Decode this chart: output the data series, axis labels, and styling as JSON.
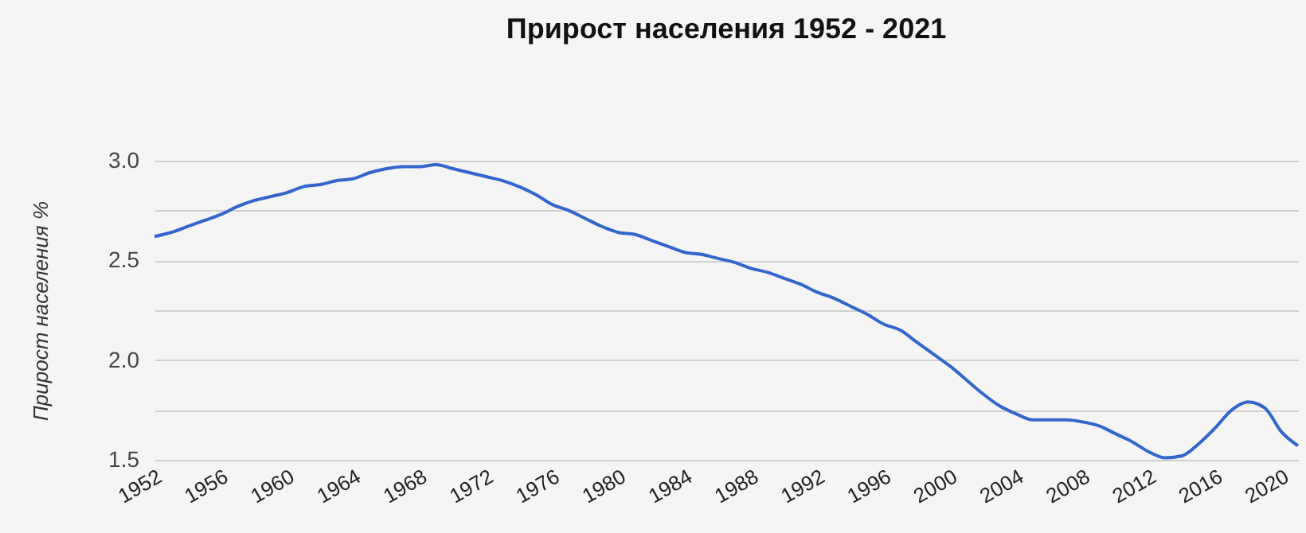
{
  "chart_data": {
    "type": "line",
    "title": "Прирост населения 1952 - 2021",
    "ylabel": "Прирост населения %",
    "x": [
      1952,
      1953,
      1954,
      1955,
      1956,
      1957,
      1958,
      1959,
      1960,
      1961,
      1962,
      1963,
      1964,
      1965,
      1966,
      1967,
      1968,
      1969,
      1970,
      1971,
      1972,
      1973,
      1974,
      1975,
      1976,
      1977,
      1978,
      1979,
      1980,
      1981,
      1982,
      1983,
      1984,
      1985,
      1986,
      1987,
      1988,
      1989,
      1990,
      1991,
      1992,
      1993,
      1994,
      1995,
      1996,
      1997,
      1998,
      1999,
      2000,
      2001,
      2002,
      2003,
      2004,
      2005,
      2006,
      2007,
      2008,
      2009,
      2010,
      2011,
      2012,
      2013,
      2014,
      2015,
      2016,
      2017,
      2018,
      2019,
      2020,
      2021
    ],
    "series": [
      {
        "color": "#3366cc",
        "values": [
          2.62,
          2.64,
          2.67,
          2.7,
          2.73,
          2.77,
          2.8,
          2.82,
          2.84,
          2.87,
          2.88,
          2.9,
          2.91,
          2.94,
          2.96,
          2.97,
          2.97,
          2.98,
          2.96,
          2.94,
          2.92,
          2.9,
          2.87,
          2.83,
          2.78,
          2.75,
          2.71,
          2.67,
          2.64,
          2.63,
          2.6,
          2.57,
          2.54,
          2.53,
          2.51,
          2.49,
          2.46,
          2.44,
          2.41,
          2.38,
          2.34,
          2.31,
          2.27,
          2.23,
          2.18,
          2.15,
          2.09,
          2.03,
          1.97,
          1.9,
          1.83,
          1.77,
          1.73,
          1.7,
          1.7,
          1.7,
          1.69,
          1.67,
          1.63,
          1.59,
          1.54,
          1.51,
          1.52,
          1.58,
          1.66,
          1.75,
          1.79,
          1.76,
          1.64,
          1.57
        ]
      }
    ],
    "xlim": [
      1952,
      2021
    ],
    "xticks": [
      1952,
      1956,
      1960,
      1964,
      1968,
      1972,
      1976,
      1980,
      1984,
      1988,
      1992,
      1996,
      2000,
      2004,
      2008,
      2012,
      2016,
      2020
    ],
    "ylim": [
      1.5,
      3.0
    ],
    "yticks": [
      {
        "value": 1.5,
        "label": "1.5"
      },
      {
        "value": 1.75,
        "label": null
      },
      {
        "value": 2.0,
        "label": "2.0"
      },
      {
        "value": 2.25,
        "label": null
      },
      {
        "value": 2.5,
        "label": "2.5"
      },
      {
        "value": 2.75,
        "label": null
      },
      {
        "value": 3.0,
        "label": "3.0"
      }
    ],
    "grid": "y",
    "marker": "none",
    "line_style": "solid"
  }
}
